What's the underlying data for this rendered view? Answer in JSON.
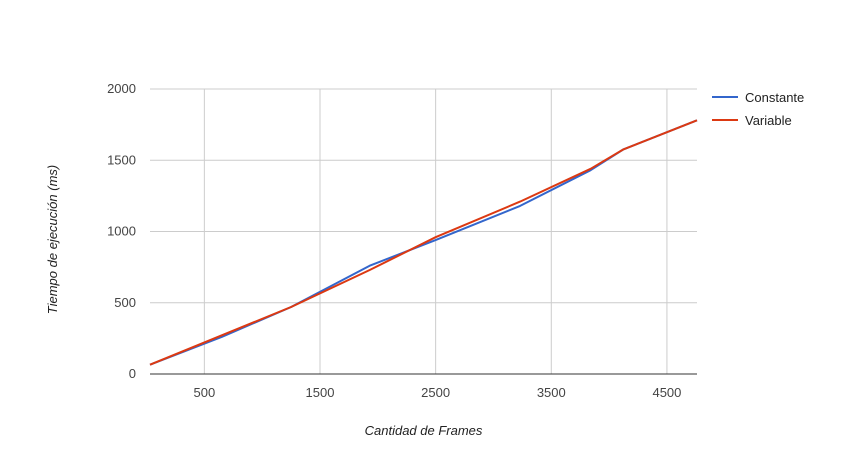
{
  "chart_data": {
    "type": "line",
    "title": "",
    "xlabel": "Cantidad de Frames",
    "ylabel": "Tiempo de ejecución (ms)",
    "xlim": [
      30,
      4760
    ],
    "ylim": [
      0,
      2000
    ],
    "x_ticks": [
      500,
      1500,
      2500,
      3500,
      4500
    ],
    "y_ticks": [
      0,
      500,
      1000,
      1500,
      2000
    ],
    "grid": true,
    "legend_position": "right",
    "series": [
      {
        "name": "Constante",
        "color": "#3366cc",
        "points": [
          [
            30,
            65
          ],
          [
            650,
            260
          ],
          [
            1250,
            470
          ],
          [
            1930,
            760
          ],
          [
            2500,
            940
          ],
          [
            3230,
            1180
          ],
          [
            3840,
            1430
          ],
          [
            4120,
            1575
          ],
          [
            4760,
            1780
          ]
        ]
      },
      {
        "name": "Variable",
        "color": "#dc3912",
        "points": [
          [
            30,
            65
          ],
          [
            1250,
            470
          ],
          [
            1930,
            730
          ],
          [
            2500,
            960
          ],
          [
            3230,
            1210
          ],
          [
            3840,
            1440
          ],
          [
            4120,
            1575
          ],
          [
            4760,
            1780
          ]
        ]
      }
    ]
  }
}
